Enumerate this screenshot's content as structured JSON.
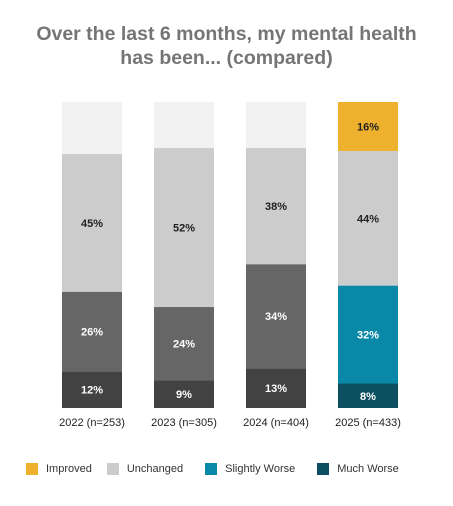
{
  "title_lines": [
    "Over the last 6 months, my mental health",
    "has been... (compared)"
  ],
  "colors": {
    "improved": "#EDB12E",
    "unchanged": "#CCCCCC",
    "slightly_worse": "#0A88A8",
    "much_worse": "#0B4F60",
    "slightly_worse_gray": "#666666",
    "much_worse_gray": "#424242",
    "top_blank": "#F2F2F2"
  },
  "legend": {
    "improved": "Improved",
    "unchanged": "Unchanged",
    "slightly_worse": "Slightly Worse",
    "much_worse": "Much Worse"
  },
  "chart_data": {
    "type": "bar",
    "stacked": true,
    "title": "Over the last 6 months, my mental health has been... (compared)",
    "categories": [
      "2022 (n=253)",
      "2023 (n=305)",
      "2024 (n=404)",
      "2025 (n=433)"
    ],
    "ylim": [
      0,
      100
    ],
    "legend_position": "bottom",
    "grid": false,
    "series": [
      {
        "name": "Much Worse",
        "values": [
          12,
          9,
          13,
          8
        ],
        "labels": [
          "12%",
          "9%",
          "13%",
          "8%"
        ]
      },
      {
        "name": "Slightly Worse",
        "values": [
          26,
          24,
          34,
          32
        ],
        "labels": [
          "26%",
          "24%",
          "34%",
          "32%"
        ]
      },
      {
        "name": "Unchanged",
        "values": [
          45,
          52,
          38,
          44
        ],
        "labels": [
          "45%",
          "52%",
          "38%",
          "44%"
        ]
      },
      {
        "name": "Improved",
        "values": [
          null,
          null,
          null,
          16
        ],
        "labels": [
          "",
          "",
          "",
          "16%"
        ]
      }
    ]
  }
}
